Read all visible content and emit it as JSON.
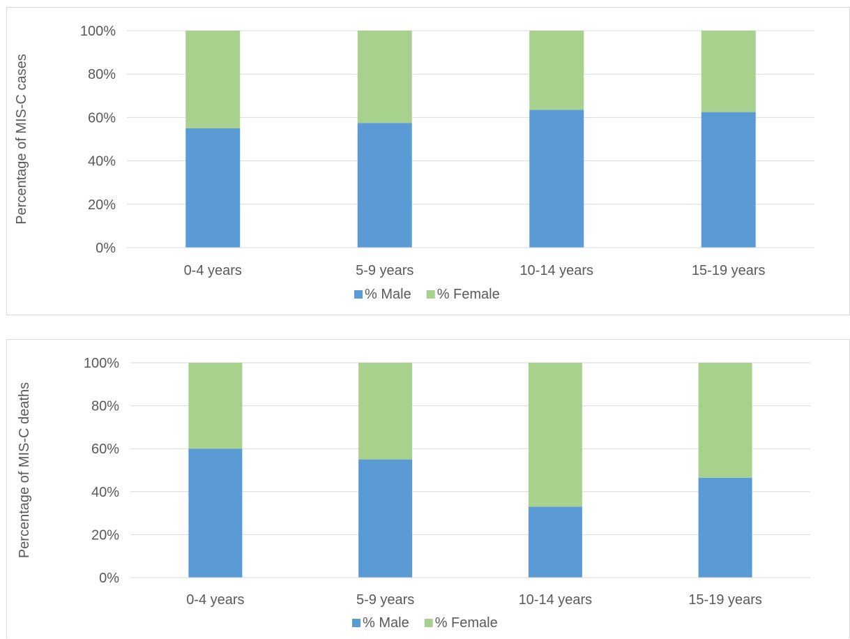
{
  "colors": {
    "male": "#5b9bd5",
    "female": "#a9d18e",
    "grid": "#d9d9d9",
    "text": "#595959"
  },
  "chart_data": [
    {
      "type": "bar",
      "stacked": true,
      "percent": true,
      "title": "",
      "xlabel": "",
      "ylabel": "Percentage of MIS-C cases",
      "ylim": [
        0,
        100
      ],
      "yticks": [
        "0%",
        "20%",
        "40%",
        "60%",
        "80%",
        "100%"
      ],
      "categories": [
        "0-4 years",
        "5-9 years",
        "10-14 years",
        "15-19 years"
      ],
      "series": [
        {
          "name": "% Male",
          "values": [
            55,
            57.5,
            63.5,
            62.5
          ]
        },
        {
          "name": "% Female",
          "values": [
            45,
            42.5,
            36.5,
            37.5
          ]
        }
      ],
      "grid": true,
      "legend_position": "bottom"
    },
    {
      "type": "bar",
      "stacked": true,
      "percent": true,
      "title": "",
      "xlabel": "",
      "ylabel": "Percentage of MIS-C deaths",
      "ylim": [
        0,
        100
      ],
      "yticks": [
        "0%",
        "20%",
        "40%",
        "60%",
        "80%",
        "100%"
      ],
      "categories": [
        "0-4 years",
        "5-9 years",
        "10-14 years",
        "15-19 years"
      ],
      "series": [
        {
          "name": "% Male",
          "values": [
            60,
            55,
            33,
            46.5
          ]
        },
        {
          "name": "% Female",
          "values": [
            40,
            45,
            67,
            53.5
          ]
        }
      ],
      "grid": true,
      "legend_position": "bottom"
    }
  ]
}
